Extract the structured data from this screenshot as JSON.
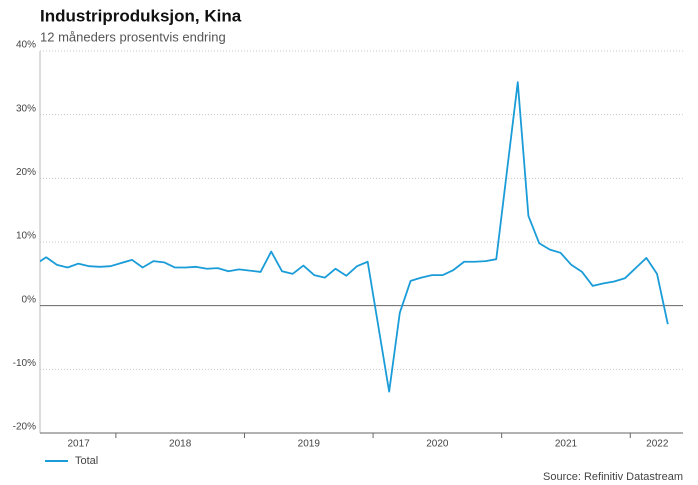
{
  "chart_data": {
    "type": "line",
    "title": "Industriproduksjon, Kina",
    "subtitle": "12 måneders prosentvis endring",
    "source": "Source: Refinitiv Datastream",
    "ylim": [
      -20,
      40
    ],
    "yticks": [
      {
        "value": -20,
        "label": "-20%"
      },
      {
        "value": -10,
        "label": "-10%"
      },
      {
        "value": 0,
        "label": "0%"
      },
      {
        "value": 10,
        "label": "10%"
      },
      {
        "value": 20,
        "label": "20%"
      },
      {
        "value": 30,
        "label": "30%"
      },
      {
        "value": 40,
        "label": "40%"
      }
    ],
    "xlim": [
      2017.41,
      2022.41
    ],
    "xticks": [
      2018,
      2019,
      2020,
      2021,
      2022
    ],
    "xlabels": [
      {
        "value": 2017.71,
        "label": "2017"
      },
      {
        "value": 2018.5,
        "label": "2018"
      },
      {
        "value": 2019.5,
        "label": "2019"
      },
      {
        "value": 2020.5,
        "label": "2020"
      },
      {
        "value": 2021.5,
        "label": "2021"
      },
      {
        "value": 2022.21,
        "label": "2022"
      }
    ],
    "grid": true,
    "legend": "bottom-left",
    "x": [
      2017.375,
      2017.458,
      2017.542,
      2017.625,
      2017.708,
      2017.792,
      2017.875,
      2017.958,
      2018.125,
      2018.208,
      2018.292,
      2018.375,
      2018.458,
      2018.542,
      2018.625,
      2018.708,
      2018.792,
      2018.875,
      2018.958,
      2019.125,
      2019.208,
      2019.292,
      2019.375,
      2019.458,
      2019.542,
      2019.625,
      2019.708,
      2019.792,
      2019.875,
      2019.958,
      2020.125,
      2020.208,
      2020.292,
      2020.375,
      2020.458,
      2020.542,
      2020.625,
      2020.708,
      2020.792,
      2020.875,
      2020.958,
      2021.125,
      2021.208,
      2021.292,
      2021.375,
      2021.458,
      2021.542,
      2021.625,
      2021.708,
      2021.792,
      2021.875,
      2021.958,
      2022.125,
      2022.208,
      2022.292
    ],
    "series": [
      {
        "name": "Total",
        "color": "#1a9cd8",
        "values": [
          6.5,
          7.6,
          6.4,
          6.0,
          6.6,
          6.2,
          6.1,
          6.2,
          7.2,
          6.0,
          7.0,
          6.8,
          6.0,
          6.0,
          6.1,
          5.8,
          5.9,
          5.4,
          5.7,
          5.3,
          8.5,
          5.4,
          5.0,
          6.3,
          4.8,
          4.4,
          5.8,
          4.7,
          6.2,
          6.9,
          -13.5,
          -1.1,
          3.9,
          4.4,
          4.8,
          4.8,
          5.6,
          6.9,
          6.9,
          7.0,
          7.3,
          35.1,
          14.1,
          9.8,
          8.8,
          8.3,
          6.4,
          5.3,
          3.1,
          3.5,
          3.8,
          4.3,
          7.5,
          5.0,
          -2.9
        ]
      }
    ]
  }
}
